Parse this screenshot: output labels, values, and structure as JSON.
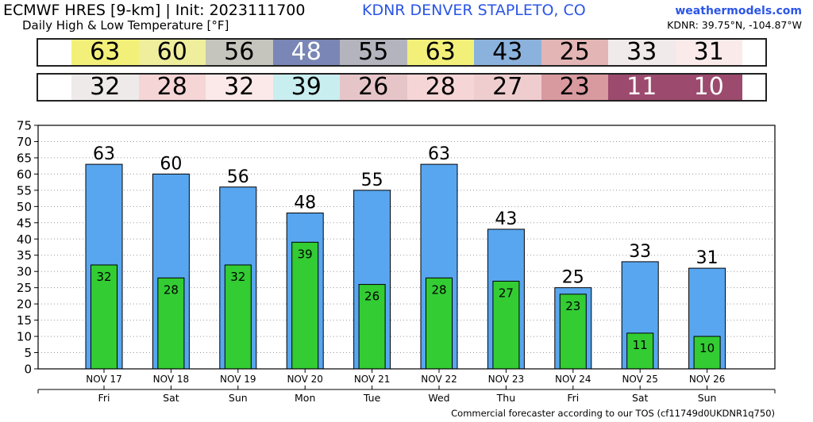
{
  "header": {
    "title": "ECMWF HRES [9-km] | Init: 2023111700",
    "station": "KDNR DENVER STAPLETO, CO",
    "subtitle": "Daily High & Low Temperature [°F]",
    "site": "weathermodels.com",
    "coords": "KDNR: 39.75°N, -104.87°W"
  },
  "footer": "Commercial forecaster according to our TOS (cf11749d0UKDNR1q750)",
  "colors": {
    "high_bar": "#58a6ef",
    "low_bar": "#33cc33",
    "high_strip": [
      "#f3f07a",
      "#eeee9c",
      "#c5c5bd",
      "#7986b6",
      "#b4b4be",
      "#f3f07a",
      "#8bb2dd",
      "#e3b5b5",
      "#f0eaea",
      "#fbeaea"
    ],
    "low_strip": [
      "#eeeaea",
      "#f5d5d6",
      "#fbe9e9",
      "#c9eef0",
      "#e6c5c8",
      "#f5d5d6",
      "#efcdcf",
      "#d89a9f",
      "#9c4a6e",
      "#9c4a6e"
    ],
    "low_strip_text": [
      "#000000",
      "#000000",
      "#000000",
      "#000000",
      "#000000",
      "#000000",
      "#000000",
      "#000000",
      "#ffffff",
      "#ffffff"
    ],
    "high_strip_text": [
      "#000000",
      "#000000",
      "#000000",
      "#ffffff",
      "#000000",
      "#000000",
      "#000000",
      "#000000",
      "#000000",
      "#000000"
    ]
  },
  "chart_data": {
    "type": "bar",
    "categories": [
      "NOV 17",
      "NOV 18",
      "NOV 19",
      "NOV 20",
      "NOV 21",
      "NOV 22",
      "NOV 23",
      "NOV 24",
      "NOV 25",
      "NOV 26"
    ],
    "weekdays": [
      "Fri",
      "Sat",
      "Sun",
      "Mon",
      "Tue",
      "Wed",
      "Thu",
      "Fri",
      "Sat",
      "Sun"
    ],
    "series": [
      {
        "values": [
          63,
          60,
          56,
          48,
          55,
          63,
          43,
          25,
          33,
          31
        ]
      },
      {
        "values": [
          32,
          28,
          32,
          39,
          26,
          28,
          27,
          23,
          11,
          10
        ]
      }
    ],
    "ylim": [
      0,
      75
    ],
    "yticks": [
      0,
      5,
      10,
      15,
      20,
      25,
      30,
      35,
      40,
      45,
      50,
      55,
      60,
      65,
      70,
      75
    ],
    "grid": true
  }
}
